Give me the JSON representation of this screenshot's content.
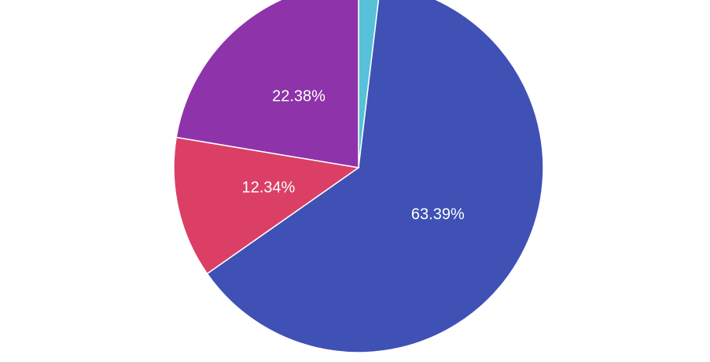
{
  "chart_data": {
    "type": "pie",
    "series": [
      {
        "color": "#56c1d9",
        "values": [
          1.89
        ]
      },
      {
        "color": "#3f51b5",
        "values": [
          63.39
        ]
      },
      {
        "color": "#db3f66",
        "values": [
          12.34
        ]
      },
      {
        "color": "#8e33aa",
        "values": [
          22.38
        ]
      }
    ],
    "values": [
      1.89,
      63.39,
      12.34,
      22.38
    ],
    "value_labels": [
      null,
      "63.39%",
      "12.34%",
      "22.38%"
    ],
    "colors": [
      "#56c1d9",
      "#3f51b5",
      "#db3f66",
      "#8e33aa"
    ]
  }
}
